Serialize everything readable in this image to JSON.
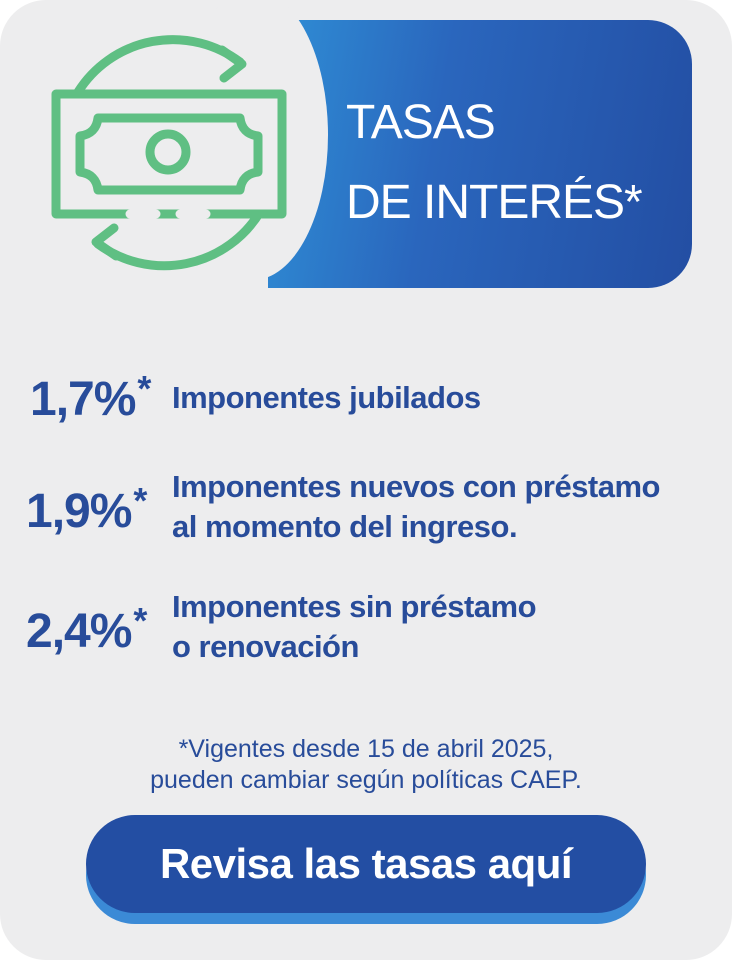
{
  "banner": {
    "title_line1": "TASAS",
    "title_line2": "DE INTERÉS*"
  },
  "icon": "money-exchange-icon",
  "rates": [
    {
      "value": "1,7%",
      "star": "*",
      "lines": [
        "Imponentes jubilados"
      ]
    },
    {
      "value": "1,9%",
      "star": "*",
      "lines": [
        "Imponentes nuevos con préstamo",
        "al momento del ingreso."
      ]
    },
    {
      "value": "2,4%",
      "star": "*",
      "lines": [
        "Imponentes sin préstamo",
        "o renovación"
      ]
    }
  ],
  "footnote": {
    "line1": "*Vigentes desde 15 de abril 2025,",
    "line2": "pueden cambiar según políticas CAEP."
  },
  "cta": {
    "label": "Revisa las tasas aquí"
  },
  "colors": {
    "background": "#ededee",
    "accent_blue": "#234ea3",
    "light_blue": "#3b8ad6",
    "text_blue": "#284c9a",
    "icon_green": "#5fbf83"
  }
}
